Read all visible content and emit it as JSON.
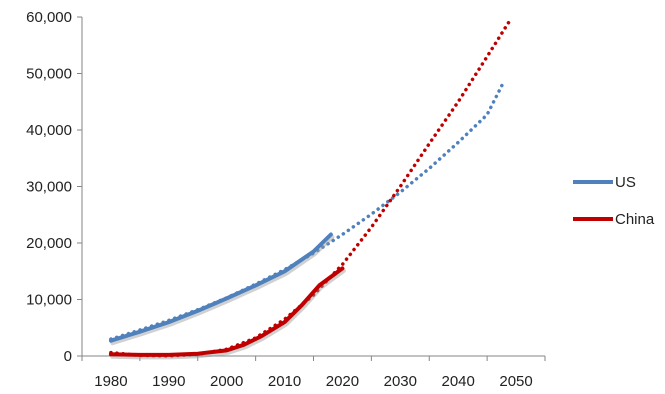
{
  "chart_data": {
    "type": "line",
    "title": "",
    "xlabel": "",
    "ylabel": "",
    "xlim": [
      1975,
      2055
    ],
    "ylim": [
      0,
      60000
    ],
    "x_ticks": [
      1980,
      1990,
      2000,
      2010,
      2020,
      2030,
      2040,
      2050
    ],
    "x_tick_labels": [
      "1980",
      "1990",
      "2000",
      "2010",
      "2020",
      "2030",
      "2040",
      "2050"
    ],
    "y_ticks": [
      0,
      10000,
      20000,
      30000,
      40000,
      50000,
      60000
    ],
    "y_tick_labels": [
      "0",
      "10,000",
      "20,000",
      "30,000",
      "40,000",
      "50,000",
      "60,000"
    ],
    "grid": false,
    "legend_position": "right",
    "series": [
      {
        "name": "US",
        "color": "#4f81bd",
        "x": [
          1980,
          1985,
          1990,
          1995,
          2000,
          2005,
          2010,
          2015,
          2018
        ],
        "y": [
          2700,
          4300,
          6000,
          8000,
          10200,
          12500,
          15000,
          18500,
          21500
        ],
        "trend_color": "#4f81bd",
        "trend_x": [
          1980,
          1985,
          1990,
          1995,
          2000,
          2005,
          2010,
          2015,
          2020,
          2025,
          2030,
          2035,
          2040,
          2045,
          2048
        ],
        "trend_y": [
          3000,
          4600,
          6300,
          8200,
          10300,
          12700,
          15300,
          18200,
          21500,
          25100,
          29000,
          33200,
          37800,
          42700,
          48800
        ]
      },
      {
        "name": "China",
        "color": "#c00000",
        "x": [
          1980,
          1985,
          1990,
          1995,
          2000,
          2003,
          2006,
          2010,
          2013,
          2016,
          2020
        ],
        "y": [
          300,
          200,
          200,
          400,
          1000,
          2000,
          3500,
          6000,
          9000,
          12500,
          15500
        ],
        "trend_color": "#c00000",
        "trend_x": [
          1980,
          1985,
          1990,
          1995,
          2000,
          2005,
          2010,
          2015,
          2020,
          2025,
          2030,
          2035,
          2040,
          2045,
          2049
        ],
        "trend_y": [
          600,
          100,
          0,
          300,
          1200,
          3200,
          6500,
          10800,
          16200,
          22800,
          30000,
          37600,
          45000,
          53000,
          59500
        ]
      }
    ]
  }
}
